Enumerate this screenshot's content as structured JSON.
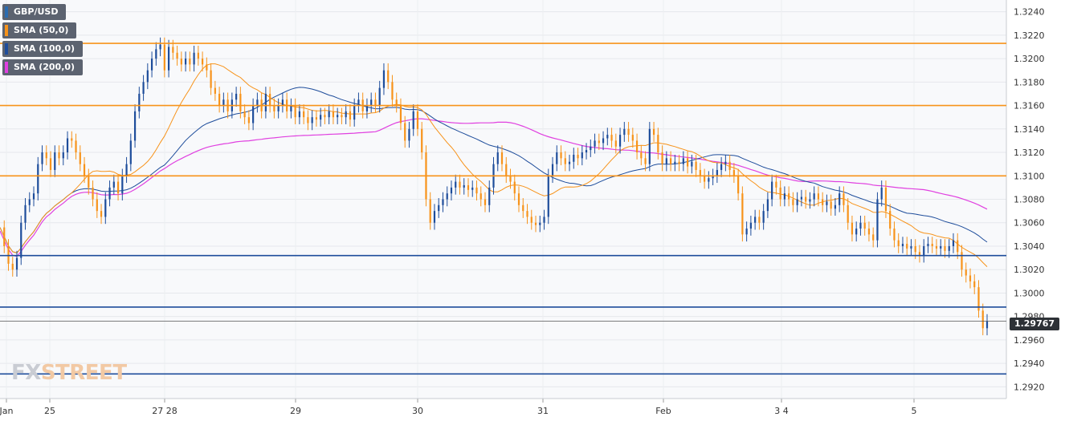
{
  "legend": [
    {
      "label": "GBP/USD",
      "color": "#2b6cb0"
    },
    {
      "label": "SMA (50,0)",
      "color": "#f7931a"
    },
    {
      "label": "SMA (100,0)",
      "color": "#1e4d9b"
    },
    {
      "label": "SMA (200,0)",
      "color": "#e040e0"
    }
  ],
  "logo": {
    "fx": "FX",
    "street": "STREET"
  },
  "current_price_label": "1.29767",
  "chart_data": {
    "type": "line",
    "title": "",
    "symbol": "GBP/USD",
    "x_ticks": [
      "Jan",
      "25",
      "27 28",
      "29",
      "30",
      "31",
      "Feb",
      "3  4",
      "5"
    ],
    "y_ticks": [
      "1.3240",
      "1.3220",
      "1.3200",
      "1.3180",
      "1.3160",
      "1.3140",
      "1.3120",
      "1.3100",
      "1.3080",
      "1.3060",
      "1.3040",
      "1.3020",
      "1.3000",
      "1.2980",
      "1.2960",
      "1.2940",
      "1.2920"
    ],
    "ylim": [
      1.291,
      1.325
    ],
    "horizontal_levels": [
      {
        "value": 1.3213,
        "color": "#f7931a"
      },
      {
        "value": 1.316,
        "color": "#f7931a"
      },
      {
        "value": 1.31,
        "color": "#f7931a"
      },
      {
        "value": 1.3032,
        "color": "#1e4d9b"
      },
      {
        "value": 1.2988,
        "color": "#1e4d9b"
      },
      {
        "value": 1.2976,
        "color": "#555555"
      },
      {
        "value": 1.2931,
        "color": "#1e4d9b"
      }
    ],
    "close_series": [
      [
        0,
        1.3056
      ],
      [
        0.5,
        1.304
      ],
      [
        1,
        1.3025
      ],
      [
        1.5,
        1.302
      ],
      [
        2,
        1.303
      ],
      [
        2.5,
        1.306
      ],
      [
        3,
        1.3075
      ],
      [
        3.5,
        1.308
      ],
      [
        4,
        1.3085
      ],
      [
        4.5,
        1.311
      ],
      [
        5,
        1.312
      ],
      [
        5.5,
        1.3115
      ],
      [
        6,
        1.3105
      ],
      [
        6.5,
        1.312
      ],
      [
        7,
        1.3115
      ],
      [
        7.5,
        1.312
      ],
      [
        8,
        1.3132
      ],
      [
        8.5,
        1.313
      ],
      [
        9,
        1.312
      ],
      [
        9.5,
        1.311
      ],
      [
        10,
        1.31
      ],
      [
        10.5,
        1.309
      ],
      [
        11,
        1.308
      ],
      [
        11.5,
        1.307
      ],
      [
        12,
        1.3065
      ],
      [
        12.5,
        1.308
      ],
      [
        13,
        1.309
      ],
      [
        13.5,
        1.3095
      ],
      [
        14,
        1.3085
      ],
      [
        14.5,
        1.31
      ],
      [
        15,
        1.311
      ],
      [
        15.5,
        1.313
      ],
      [
        16,
        1.3155
      ],
      [
        16.5,
        1.317
      ],
      [
        17,
        1.318
      ],
      [
        17.5,
        1.319
      ],
      [
        18,
        1.32
      ],
      [
        18.5,
        1.3208
      ],
      [
        19,
        1.3212
      ],
      [
        19.5,
        1.319
      ],
      [
        20,
        1.321
      ],
      [
        20.5,
        1.3205
      ],
      [
        21,
        1.32
      ],
      [
        21.5,
        1.3195
      ],
      [
        22,
        1.32
      ],
      [
        22.5,
        1.3195
      ],
      [
        23,
        1.3205
      ],
      [
        23.5,
        1.32
      ],
      [
        24,
        1.3195
      ],
      [
        24.5,
        1.319
      ],
      [
        25,
        1.3175
      ],
      [
        25.5,
        1.317
      ],
      [
        26,
        1.316
      ],
      [
        26.5,
        1.3165
      ],
      [
        27,
        1.3155
      ],
      [
        27.5,
        1.3165
      ],
      [
        28,
        1.317
      ],
      [
        28.5,
        1.3155
      ],
      [
        29,
        1.315
      ],
      [
        29.5,
        1.3145
      ],
      [
        30,
        1.316
      ],
      [
        30.5,
        1.3165
      ],
      [
        31,
        1.3155
      ],
      [
        31.5,
        1.317
      ],
      [
        32,
        1.316
      ],
      [
        32.5,
        1.3155
      ],
      [
        33,
        1.316
      ],
      [
        33.5,
        1.3165
      ],
      [
        34,
        1.3155
      ],
      [
        34.5,
        1.316
      ],
      [
        35,
        1.315
      ],
      [
        35.5,
        1.3155
      ],
      [
        36,
        1.315
      ],
      [
        36.5,
        1.3145
      ],
      [
        37,
        1.315
      ],
      [
        37.5,
        1.3148
      ],
      [
        38,
        1.3152
      ],
      [
        38.5,
        1.315
      ],
      [
        39,
        1.3155
      ],
      [
        39.5,
        1.315
      ],
      [
        40,
        1.3152
      ],
      [
        40.5,
        1.315
      ],
      [
        41,
        1.3155
      ],
      [
        41.5,
        1.3148
      ],
      [
        42,
        1.316
      ],
      [
        42.5,
        1.3165
      ],
      [
        43,
        1.3155
      ],
      [
        43.5,
        1.316
      ],
      [
        44,
        1.3165
      ],
      [
        44.5,
        1.316
      ],
      [
        45,
        1.3175
      ],
      [
        45.5,
        1.319
      ],
      [
        46,
        1.318
      ],
      [
        46.5,
        1.3165
      ],
      [
        47,
        1.316
      ],
      [
        47.5,
        1.3145
      ],
      [
        48,
        1.313
      ],
      [
        48.5,
        1.314
      ],
      [
        49,
        1.3155
      ],
      [
        49.5,
        1.314
      ],
      [
        50,
        1.312
      ],
      [
        50.5,
        1.308
      ],
      [
        51,
        1.306
      ],
      [
        51.5,
        1.307
      ],
      [
        52,
        1.3075
      ],
      [
        52.5,
        1.308
      ],
      [
        53,
        1.3085
      ],
      [
        53.5,
        1.309
      ],
      [
        54,
        1.3095
      ],
      [
        54.5,
        1.309
      ],
      [
        55,
        1.3092
      ],
      [
        55.5,
        1.3088
      ],
      [
        56,
        1.309
      ],
      [
        56.5,
        1.3085
      ],
      [
        57,
        1.308
      ],
      [
        57.5,
        1.3075
      ],
      [
        58,
        1.309
      ],
      [
        58.5,
        1.311
      ],
      [
        59,
        1.312
      ],
      [
        59.5,
        1.311
      ],
      [
        60,
        1.31
      ],
      [
        60.5,
        1.3095
      ],
      [
        61,
        1.3085
      ],
      [
        61.5,
        1.3075
      ],
      [
        62,
        1.307
      ],
      [
        62.5,
        1.3065
      ],
      [
        63,
        1.306
      ],
      [
        63.5,
        1.3058
      ],
      [
        64,
        1.306
      ],
      [
        64.5,
        1.3065
      ],
      [
        65,
        1.31
      ],
      [
        65.5,
        1.311
      ],
      [
        66,
        1.312
      ],
      [
        66.5,
        1.3115
      ],
      [
        67,
        1.311
      ],
      [
        67.5,
        1.3112
      ],
      [
        68,
        1.3118
      ],
      [
        68.5,
        1.3115
      ],
      [
        69,
        1.312
      ],
      [
        69.5,
        1.3122
      ],
      [
        70,
        1.3125
      ],
      [
        70.5,
        1.313
      ],
      [
        71,
        1.3128
      ],
      [
        71.5,
        1.3132
      ],
      [
        72,
        1.3135
      ],
      [
        72.5,
        1.313
      ],
      [
        73,
        1.3125
      ],
      [
        73.5,
        1.3135
      ],
      [
        74,
        1.314
      ],
      [
        74.5,
        1.3135
      ],
      [
        75,
        1.313
      ],
      [
        75.5,
        1.312
      ],
      [
        76,
        1.3115
      ],
      [
        76.5,
        1.311
      ],
      [
        77,
        1.314
      ],
      [
        77.5,
        1.3135
      ],
      [
        78,
        1.312
      ],
      [
        78.5,
        1.311
      ],
      [
        79,
        1.3115
      ],
      [
        79.5,
        1.311
      ],
      [
        80,
        1.3112
      ],
      [
        80.5,
        1.311
      ],
      [
        81,
        1.3115
      ],
      [
        81.5,
        1.3108
      ],
      [
        82,
        1.3112
      ],
      [
        82.5,
        1.3105
      ],
      [
        83,
        1.31
      ],
      [
        83.5,
        1.3095
      ],
      [
        84,
        1.3098
      ],
      [
        84.5,
        1.31
      ],
      [
        85,
        1.3105
      ],
      [
        85.5,
        1.311
      ],
      [
        86,
        1.3112
      ],
      [
        86.5,
        1.3105
      ],
      [
        87,
        1.31
      ],
      [
        87.5,
        1.3085
      ],
      [
        88,
        1.305
      ],
      [
        88.5,
        1.3055
      ],
      [
        89,
        1.306
      ],
      [
        89.5,
        1.3065
      ],
      [
        90,
        1.306
      ],
      [
        90.5,
        1.307
      ],
      [
        91,
        1.308
      ],
      [
        91.5,
        1.3095
      ],
      [
        92,
        1.309
      ],
      [
        92.5,
        1.308
      ],
      [
        93,
        1.3085
      ],
      [
        93.5,
        1.308
      ],
      [
        94,
        1.3075
      ],
      [
        94.5,
        1.308
      ],
      [
        95,
        1.3082
      ],
      [
        95.5,
        1.3078
      ],
      [
        96,
        1.308
      ],
      [
        96.5,
        1.3085
      ],
      [
        97,
        1.308
      ],
      [
        97.5,
        1.3075
      ],
      [
        98,
        1.3078
      ],
      [
        98.5,
        1.3072
      ],
      [
        99,
        1.3075
      ],
      [
        99.5,
        1.3085
      ],
      [
        100,
        1.3075
      ],
      [
        100.5,
        1.306
      ],
      [
        101,
        1.305
      ],
      [
        101.5,
        1.3055
      ],
      [
        102,
        1.306
      ],
      [
        102.5,
        1.3055
      ],
      [
        103,
        1.305
      ],
      [
        103.5,
        1.3045
      ],
      [
        104,
        1.308
      ],
      [
        104.5,
        1.309
      ],
      [
        105,
        1.307
      ],
      [
        105.5,
        1.3055
      ],
      [
        106,
        1.3045
      ],
      [
        106.5,
        1.304
      ],
      [
        107,
        1.3042
      ],
      [
        107.5,
        1.3038
      ],
      [
        108,
        1.304
      ],
      [
        108.5,
        1.3035
      ],
      [
        109,
        1.3032
      ],
      [
        109.5,
        1.304
      ],
      [
        110,
        1.3042
      ],
      [
        110.5,
        1.304
      ],
      [
        111,
        1.3038
      ],
      [
        111.5,
        1.304
      ],
      [
        112,
        1.3036
      ],
      [
        112.5,
        1.304
      ],
      [
        113,
        1.3045
      ],
      [
        113.5,
        1.3035
      ],
      [
        114,
        1.302
      ],
      [
        114.5,
        1.3015
      ],
      [
        115,
        1.301
      ],
      [
        115.5,
        1.3005
      ],
      [
        116,
        1.2985
      ],
      [
        116.5,
        1.297
      ],
      [
        117,
        1.2976
      ]
    ]
  }
}
